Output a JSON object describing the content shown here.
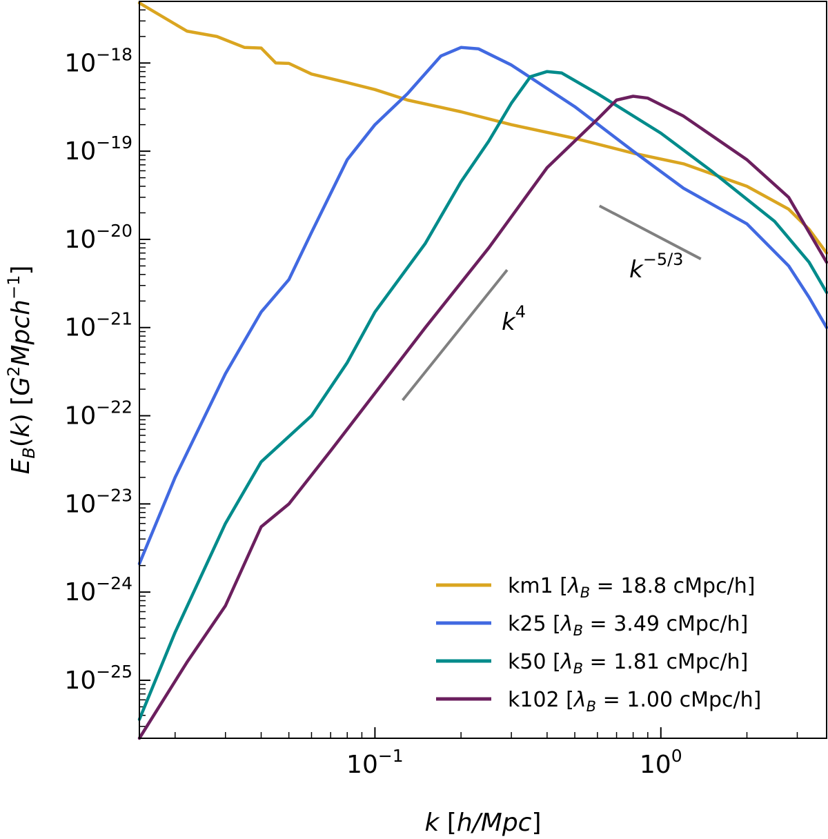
{
  "chart_data": {
    "type": "line",
    "xlabel": "k [h/Mpc]",
    "ylabel": "E_B(k) [G^2 Mpc h^-1]",
    "xscale": "log",
    "yscale": "log",
    "xlim": [
      0.015,
      3.8
    ],
    "ylim": [
      2.2e-26,
      5e-18
    ],
    "x_ticks": [
      {
        "value": 0.1,
        "base": "10",
        "exp": "−1"
      },
      {
        "value": 1,
        "base": "10",
        "exp": "0"
      }
    ],
    "y_ticks": [
      {
        "value": 1e-18,
        "base": "10",
        "exp": "−18"
      },
      {
        "value": 1e-19,
        "base": "10",
        "exp": "−19"
      },
      {
        "value": 1e-20,
        "base": "10",
        "exp": "−20"
      },
      {
        "value": 1e-21,
        "base": "10",
        "exp": "−21"
      },
      {
        "value": 1e-22,
        "base": "10",
        "exp": "−22"
      },
      {
        "value": 1e-23,
        "base": "10",
        "exp": "−23"
      },
      {
        "value": 1e-24,
        "base": "10",
        "exp": "−24"
      },
      {
        "value": 1e-25,
        "base": "10",
        "exp": "−25"
      }
    ],
    "legend_position": "bottom-right",
    "grid": false,
    "series": [
      {
        "name": "km1  [λ_B = 18.8 cMpc/h]",
        "color": "#DAA520",
        "points": [
          [
            0.015,
            4.8e-18
          ],
          [
            0.022,
            2.3e-18
          ],
          [
            0.028,
            2e-18
          ],
          [
            0.035,
            1.5e-18
          ],
          [
            0.04,
            1.48e-18
          ],
          [
            0.045,
            1e-18
          ],
          [
            0.05,
            9.9e-19
          ],
          [
            0.06,
            7.5e-19
          ],
          [
            0.08,
            6e-19
          ],
          [
            0.1,
            5e-19
          ],
          [
            0.13,
            3.8e-19
          ],
          [
            0.2,
            2.8e-19
          ],
          [
            0.3,
            2e-19
          ],
          [
            0.5,
            1.4e-19
          ],
          [
            0.8,
            9.5e-20
          ],
          [
            1.2,
            7.2e-20
          ],
          [
            2.0,
            4e-20
          ],
          [
            2.8,
            2.2e-20
          ],
          [
            3.3,
            1.3e-20
          ],
          [
            3.8,
            7e-21
          ]
        ]
      },
      {
        "name": "k25   [λ_B = 3.49 cMpc/h]",
        "color": "#4169E1",
        "points": [
          [
            0.015,
            2.1e-24
          ],
          [
            0.02,
            2e-23
          ],
          [
            0.03,
            3e-22
          ],
          [
            0.04,
            1.5e-21
          ],
          [
            0.05,
            3.5e-21
          ],
          [
            0.06,
            1.2e-20
          ],
          [
            0.08,
            8e-20
          ],
          [
            0.1,
            2e-19
          ],
          [
            0.13,
            4.5e-19
          ],
          [
            0.17,
            1.2e-18
          ],
          [
            0.2,
            1.5e-18
          ],
          [
            0.23,
            1.45e-18
          ],
          [
            0.3,
            9.5e-19
          ],
          [
            0.5,
            3.2e-19
          ],
          [
            0.8,
            1e-19
          ],
          [
            1.2,
            3.8e-20
          ],
          [
            2.0,
            1.5e-20
          ],
          [
            2.8,
            5e-21
          ],
          [
            3.3,
            2.2e-21
          ],
          [
            3.8,
            1e-21
          ]
        ]
      },
      {
        "name": "k50   [λ_B = 1.81 cMpc/h]",
        "color": "#008B8B",
        "points": [
          [
            0.015,
            3.6e-26
          ],
          [
            0.02,
            3.5e-25
          ],
          [
            0.03,
            6e-24
          ],
          [
            0.04,
            3e-23
          ],
          [
            0.06,
            1e-22
          ],
          [
            0.08,
            4e-22
          ],
          [
            0.1,
            1.5e-21
          ],
          [
            0.15,
            9e-21
          ],
          [
            0.2,
            4.5e-20
          ],
          [
            0.25,
            1.3e-19
          ],
          [
            0.3,
            3.5e-19
          ],
          [
            0.35,
            7e-19
          ],
          [
            0.4,
            8e-19
          ],
          [
            0.45,
            7.7e-19
          ],
          [
            0.6,
            4.5e-19
          ],
          [
            1.0,
            1.6e-19
          ],
          [
            1.5,
            6e-20
          ],
          [
            2.5,
            1.6e-20
          ],
          [
            3.3,
            5.5e-21
          ],
          [
            3.8,
            2.5e-21
          ]
        ]
      },
      {
        "name": "k102 [λ_B = 1.00 cMpc/h]",
        "color": "#6B1F5E",
        "points": [
          [
            0.015,
            2.2e-26
          ],
          [
            0.022,
            1.6e-25
          ],
          [
            0.03,
            7e-25
          ],
          [
            0.04,
            5.5e-24
          ],
          [
            0.05,
            1e-23
          ],
          [
            0.07,
            4e-23
          ],
          [
            0.1,
            1.8e-22
          ],
          [
            0.15,
            1e-21
          ],
          [
            0.25,
            8e-21
          ],
          [
            0.4,
            6.5e-20
          ],
          [
            0.6,
            2.3e-19
          ],
          [
            0.7,
            3.8e-19
          ],
          [
            0.8,
            4.2e-19
          ],
          [
            0.9,
            4e-19
          ],
          [
            1.2,
            2.5e-19
          ],
          [
            2.0,
            8e-20
          ],
          [
            2.8,
            3e-20
          ],
          [
            3.3,
            1.2e-20
          ],
          [
            3.8,
            5.5e-21
          ]
        ]
      }
    ],
    "reference_lines": [
      {
        "label": "k^4",
        "base": "k",
        "exp": "4",
        "color": "#808080",
        "points": [
          [
            0.125,
            1.5e-22
          ],
          [
            0.29,
            4.5e-21
          ]
        ]
      },
      {
        "label": "k^−5/3",
        "base": "k",
        "exp": "−5/3",
        "color": "#808080",
        "points": [
          [
            0.61,
            2.4e-20
          ],
          [
            1.38,
            6e-21
          ]
        ]
      }
    ]
  }
}
